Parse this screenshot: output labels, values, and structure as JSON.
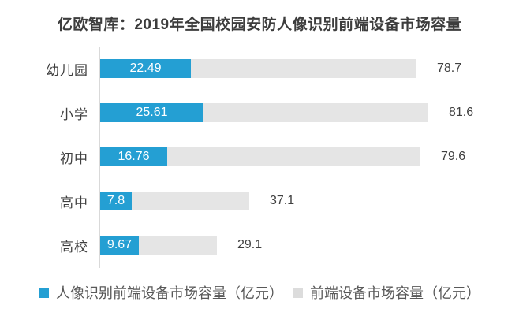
{
  "title": "亿欧智库：2019年全国校园安防人像识别前端设备市场容量",
  "chart_data": {
    "type": "bar",
    "orientation": "horizontal",
    "title": "亿欧智库：2019年全国校园安防人像识别前端设备市场容量",
    "categories": [
      "幼儿园",
      "小学",
      "初中",
      "高中",
      "高校"
    ],
    "series": [
      {
        "name": "人像识别前端设备市场容量（亿元）",
        "color": "#249fd3",
        "values": [
          22.49,
          25.61,
          16.76,
          7.8,
          9.67
        ],
        "label_position": "inside-center",
        "label_color": "#ffffff"
      },
      {
        "name": "前端设备市场容量（亿元）",
        "color": "#e5e5e5",
        "values": [
          78.7,
          81.6,
          79.6,
          37.1,
          29.1
        ],
        "label_position": "outside-end",
        "label_color": "#404040"
      }
    ],
    "xlim": [
      0,
      100
    ],
    "grid": false,
    "axis_line_color": "#d9d9d9",
    "legend_position": "bottom",
    "background": "#ffffff"
  },
  "legend": {
    "items": [
      {
        "label": "人像识别前端设备市场容量（亿元）",
        "color": "#249fd3"
      },
      {
        "label": "前端设备市场容量（亿元）",
        "color": "#dcdcdc"
      }
    ]
  }
}
